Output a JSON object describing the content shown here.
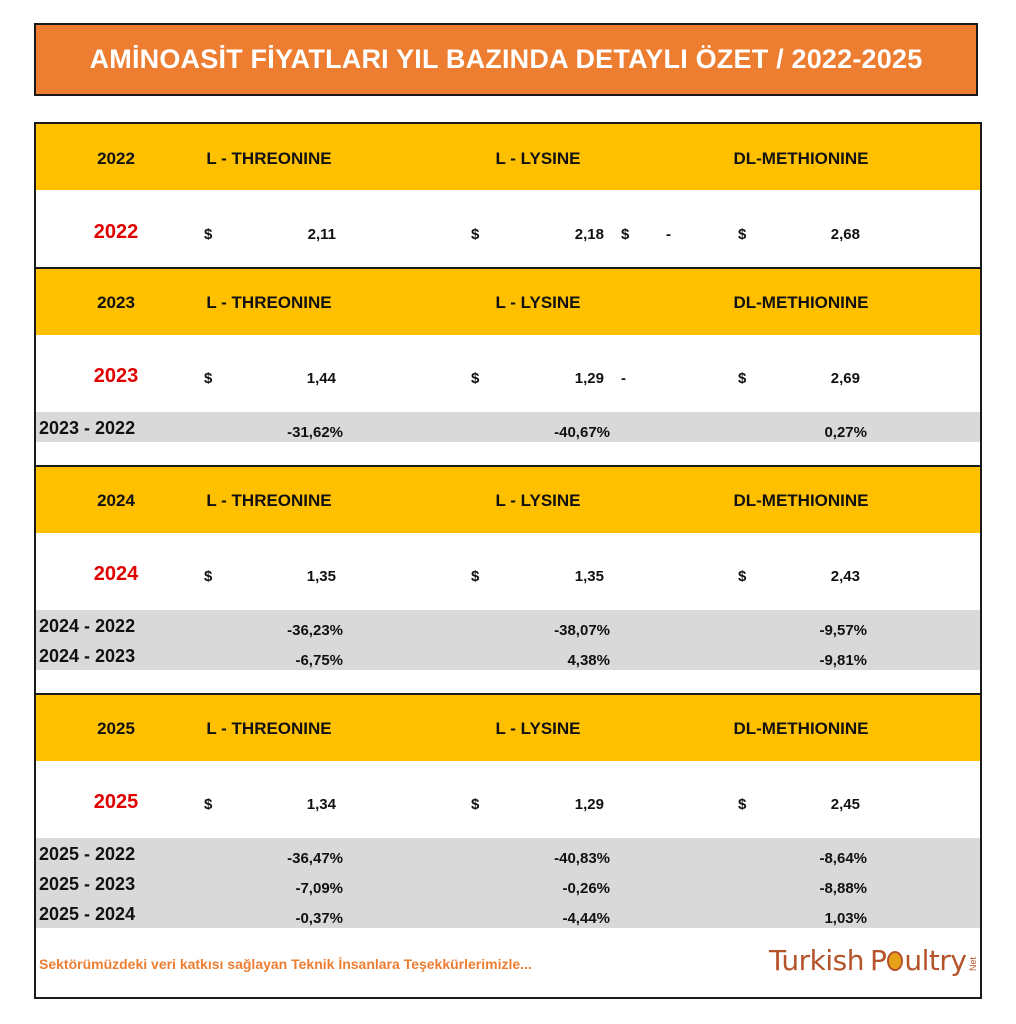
{
  "title": "AMİNOASİT FİYATLARI YIL BAZINDA DETAYLI ÖZET / 2022-2025",
  "products": [
    "L - THREONINE",
    "L - LYSINE",
    "DL-METHIONINE"
  ],
  "currency": "$",
  "blocks": [
    {
      "year": "2022",
      "prices": [
        "2,11",
        "2,18",
        "2,68"
      ],
      "lysine_extra_dollar": "$",
      "lysine_extra_dash": "-",
      "diffs": []
    },
    {
      "year": "2023",
      "prices": [
        "1,44",
        "1,29",
        "2,69"
      ],
      "lysine_extra_dash": "-",
      "diffs": [
        {
          "label": "2023 - 2022",
          "values": [
            "-31,62%",
            "-40,67%",
            "0,27%"
          ]
        }
      ]
    },
    {
      "year": "2024",
      "prices": [
        "1,35",
        "1,35",
        "2,43"
      ],
      "diffs": [
        {
          "label": "2024 - 2022",
          "values": [
            "-36,23%",
            "-38,07%",
            "-9,57%"
          ]
        },
        {
          "label": "2024 - 2023",
          "values": [
            "-6,75%",
            "4,38%",
            "-9,81%"
          ]
        }
      ]
    },
    {
      "year": "2025",
      "prices": [
        "1,34",
        "1,29",
        "2,45"
      ],
      "diffs": [
        {
          "label": "2025 - 2022",
          "values": [
            "-36,47%",
            "-40,83%",
            "-8,64%"
          ]
        },
        {
          "label": "2025 - 2023",
          "values": [
            "-7,09%",
            "-0,26%",
            "-8,88%"
          ]
        },
        {
          "label": "2025 - 2024",
          "values": [
            "-0,37%",
            "-4,44%",
            "1,03%"
          ]
        }
      ]
    }
  ],
  "footer": {
    "note": "Sektörümüzdeki veri katkısı sağlayan Teknik İnsanlara Teşekkürlerimizle...",
    "logo_part1": "Turkish",
    "logo_part2_a": "P",
    "logo_part2_b": "ultry",
    "logo_net": "Net"
  },
  "colors": {
    "title_bg": "#ED7D31",
    "header_band": "#FFC000",
    "diff_band": "#D9D9D9",
    "year_red": "#E00000",
    "footer_text": "#ED7D31"
  }
}
